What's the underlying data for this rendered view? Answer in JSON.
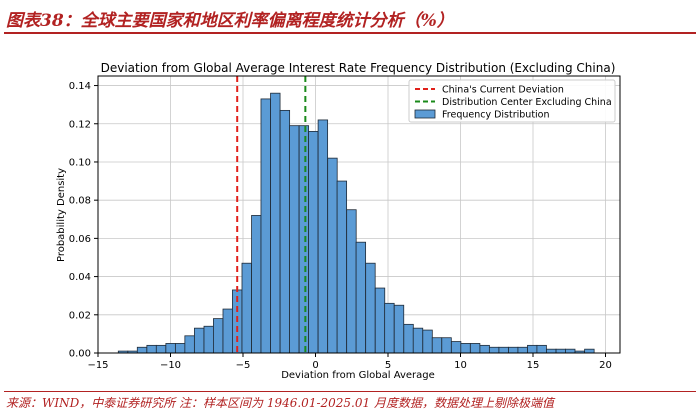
{
  "header": {
    "figure_title": "图表38：全球主要国家和地区利率偏离程度统计分析（%）"
  },
  "footer": {
    "source_note": "来源：WIND，中泰证券研究所 注：样本区间为 1946.01-2025.01 月度数据，数据处理上剔除极端值"
  },
  "colors": {
    "brand": "#b22222",
    "bar_fill": "#5b9bd5",
    "bar_stroke": "#1f2a36",
    "china_line": "#e0201a",
    "center_line": "#1a8a1a",
    "grid": "#c8c8c8"
  },
  "chart_data": {
    "type": "bar",
    "title": "Deviation from Global Average Interest Rate Frequency Distribution (Excluding China)",
    "xlabel": "Deviation from Global Average",
    "ylabel": "Probability Density",
    "xlim": [
      -15,
      21
    ],
    "ylim": [
      0,
      0.145
    ],
    "x_ticks": [
      -15,
      -10,
      -5,
      0,
      5,
      10,
      15,
      20
    ],
    "y_ticks": [
      0.0,
      0.02,
      0.04,
      0.06,
      0.08,
      0.1,
      0.12,
      0.14
    ],
    "y_tick_labels": [
      "0.00",
      "0.02",
      "0.04",
      "0.06",
      "0.08",
      "0.10",
      "0.12",
      "0.14"
    ],
    "grid": true,
    "legend_position": "top-right",
    "bin_width": 0.656,
    "bin_starts": [
      -13.6,
      -12.94,
      -12.29,
      -11.63,
      -10.98,
      -10.32,
      -9.66,
      -9.01,
      -8.35,
      -7.69,
      -7.04,
      -6.38,
      -5.73,
      -5.07,
      -4.41,
      -3.76,
      -3.1,
      -2.44,
      -1.79,
      -1.13,
      -0.48,
      0.18,
      0.84,
      1.49,
      2.15,
      2.8,
      3.46,
      4.12,
      4.77,
      5.43,
      6.09,
      6.74,
      7.4,
      8.05,
      8.71,
      9.37,
      10.02,
      10.68,
      11.34,
      11.99,
      12.65,
      13.31,
      13.96,
      14.62,
      15.27,
      15.93,
      16.59,
      17.24,
      17.9,
      18.56
    ],
    "densities": [
      0.001,
      0.001,
      0.003,
      0.004,
      0.004,
      0.005,
      0.005,
      0.009,
      0.013,
      0.014,
      0.018,
      0.023,
      0.033,
      0.047,
      0.072,
      0.133,
      0.136,
      0.127,
      0.119,
      0.119,
      0.116,
      0.122,
      0.102,
      0.09,
      0.075,
      0.058,
      0.047,
      0.034,
      0.026,
      0.025,
      0.015,
      0.013,
      0.012,
      0.008,
      0.008,
      0.006,
      0.005,
      0.005,
      0.004,
      0.003,
      0.003,
      0.003,
      0.003,
      0.004,
      0.004,
      0.002,
      0.002,
      0.002,
      0.001,
      0.002
    ],
    "reference_lines": [
      {
        "name": "China's Current Deviation",
        "x": -5.4,
        "color": "#e0201a",
        "style": "dashed"
      },
      {
        "name": "Distribution Center Excluding China",
        "x": -0.7,
        "color": "#1a8a1a",
        "style": "dashed"
      }
    ],
    "series": [
      {
        "name": "Frequency Distribution",
        "color": "#5b9bd5"
      }
    ]
  }
}
